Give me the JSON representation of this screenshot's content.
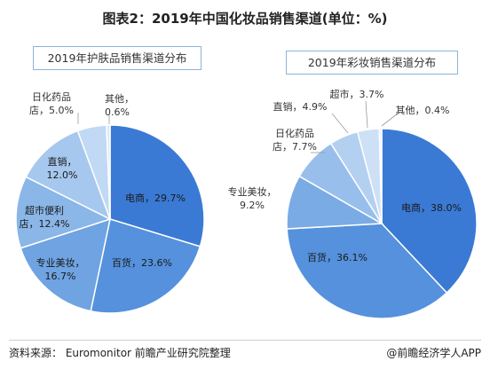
{
  "page": {
    "title": "图表2：2019年中国化妆品销售渠道(单位：%)",
    "source": "资料来源： Euromonitor 前瞻产业研究院整理",
    "brand": "@前瞻经济学人APP"
  },
  "chart_data": [
    {
      "type": "pie",
      "title": "2019年护肤品销售渠道分布",
      "slices": [
        {
          "name": "电商",
          "value": 29.7,
          "label": [
            "电商，29.7%"
          ],
          "color": "#3a7ad4"
        },
        {
          "name": "百货",
          "value": 23.6,
          "label": [
            "百货，23.6%"
          ],
          "color": "#5591dc"
        },
        {
          "name": "专业美妆店",
          "value": 16.7,
          "label": [
            "专业美妆，",
            "16.7%"
          ],
          "color": "#6fa3e2"
        },
        {
          "name": "超市便利店",
          "value": 12.4,
          "label": [
            "超市便利",
            "店，12.4%"
          ],
          "color": "#8ab6e8"
        },
        {
          "name": "直销",
          "value": 12.0,
          "label": [
            "直销，",
            "12.0%"
          ],
          "color": "#a6c8ee"
        },
        {
          "name": "日化药品店",
          "value": 5.0,
          "label": [
            "日化药品",
            "店，5.0%"
          ],
          "color": "#c1d9f4"
        },
        {
          "name": "其他",
          "value": 0.6,
          "label": [
            "其他，",
            "0.6%"
          ],
          "color": "#dbe9f8"
        }
      ]
    },
    {
      "type": "pie",
      "title": "2019年彩妆销售渠道分布",
      "slices": [
        {
          "name": "电商",
          "value": 38.0,
          "label": [
            "电商，38.0%"
          ],
          "color": "#3a7ad4"
        },
        {
          "name": "百货",
          "value": 36.1,
          "label": [
            "百货，36.1%"
          ],
          "color": "#5591dc"
        },
        {
          "name": "专业美妆",
          "value": 9.2,
          "label": [
            "专业美妆，",
            "9.2%"
          ],
          "color": "#7aabe5"
        },
        {
          "name": "日化药品店",
          "value": 7.7,
          "label": [
            "日化药品",
            "店，7.7%"
          ],
          "color": "#98bfeb"
        },
        {
          "name": "直销",
          "value": 4.9,
          "label": [
            "直销，4.9%"
          ],
          "color": "#b3d0f0"
        },
        {
          "name": "超市",
          "value": 3.7,
          "label": [
            "超市，3.7%"
          ],
          "color": "#cde0f6"
        },
        {
          "name": "其他",
          "value": 0.4,
          "label": [
            "其他，0.4%"
          ],
          "color": "#e4eefa"
        }
      ]
    }
  ]
}
